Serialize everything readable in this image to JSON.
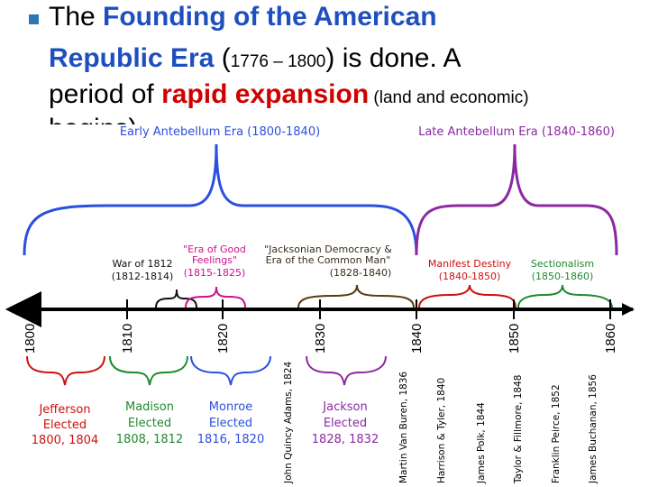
{
  "headline": {
    "line1_a": "The ",
    "line1_b": "Founding of the American",
    "line2_a": "Republic Era",
    "line2_b": " (",
    "line2_c": "1776 – 1800",
    "line2_d": ") is done.  A",
    "line3_a": "period of ",
    "line3_b": "rapid expansion",
    "line3_c": " (land and economic)",
    "line4": "begins)"
  },
  "eras": [
    {
      "label": "Early Antebellum Era (1800-1840)",
      "color": "#2b4fe0"
    },
    {
      "label": "Late Antebellum Era (1840-1860)",
      "color": "#8a2aa0"
    }
  ],
  "periods": [
    {
      "lines": [
        "War of 1812",
        "(1812-1814)"
      ],
      "color": "#111111"
    },
    {
      "lines": [
        "\"Era of Good",
        "Feelings\"",
        "(1815-1825)"
      ],
      "color": "#d0108a"
    },
    {
      "lines": [
        "\"Jacksonian Democracy &",
        "Era of the Common Man\"",
        "(1828-1840)"
      ],
      "color": "#3a2c1a"
    },
    {
      "lines": [
        "Manifest Destiny",
        "(1840-1850)"
      ],
      "color": "#d01010"
    },
    {
      "lines": [
        "Sectionalism",
        "(1850-1860)"
      ],
      "color": "#1f8a2e"
    }
  ],
  "decades": [
    "1800",
    "1810",
    "1820",
    "1830",
    "1840",
    "1850",
    "1860"
  ],
  "presidencies": [
    {
      "lines": [
        "Jefferson",
        "Elected",
        "1800, 1804"
      ],
      "color": "#d01010"
    },
    {
      "lines": [
        "Madison",
        "Elected",
        "1808, 1812"
      ],
      "color": "#1f8a2e"
    },
    {
      "lines": [
        "Monroe",
        "Elected",
        "1816, 1820"
      ],
      "color": "#2b4fe0"
    },
    {
      "lines": [
        "Jackson",
        "Elected",
        "1828, 1832"
      ],
      "color": "#8a2aa0"
    }
  ],
  "single_terms": [
    "John Quincy Adams, 1824",
    "Martin Van Buren, 1836",
    "Harrison & Tyler, 1840",
    "James Polk, 1844",
    "Taylor & Fillmore, 1848",
    "Franklin Peirce, 1852",
    "James Buchanan, 1856"
  ],
  "colors": {
    "axis": "#000000",
    "headline_blue": "#1f4fbf",
    "headline_red": "#d00000",
    "bullet": "#2e75b6"
  }
}
